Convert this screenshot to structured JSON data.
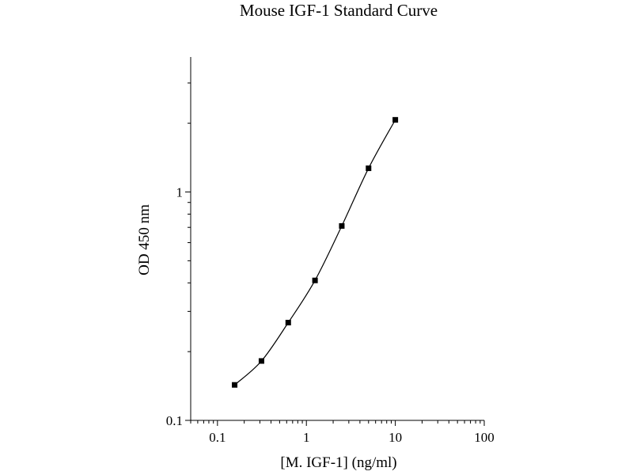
{
  "chart_data": {
    "type": "scatter",
    "title": "Mouse IGF-1 Standard Curve",
    "xlabel": "[M. IGF-1] (ng/ml)",
    "ylabel": "OD 450 nm",
    "x_scale": "log",
    "y_scale": "log",
    "xlim": [
      0.05,
      100
    ],
    "ylim": [
      0.1,
      3.9
    ],
    "x_ticks": [
      "0.1",
      "1",
      "10",
      "100"
    ],
    "y_ticks": [
      "0.1",
      "1"
    ],
    "grid": false,
    "legend": "none",
    "curve": "fitted smooth line through points",
    "series": [
      {
        "x": [
          0.156,
          0.3125,
          0.625,
          1.25,
          2.5,
          5,
          10
        ],
        "y": [
          0.143,
          0.182,
          0.268,
          0.41,
          0.71,
          1.27,
          2.07
        ]
      }
    ],
    "colors": {
      "marker": "#000000",
      "line": "#000000",
      "axis": "#000000",
      "text": "#000000"
    }
  }
}
